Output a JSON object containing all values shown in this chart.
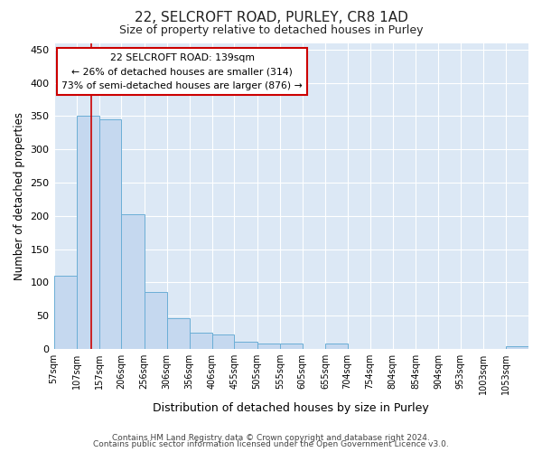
{
  "title": "22, SELCROFT ROAD, PURLEY, CR8 1AD",
  "subtitle": "Size of property relative to detached houses in Purley",
  "xlabel": "Distribution of detached houses by size in Purley",
  "ylabel": "Number of detached properties",
  "bar_values": [
    110,
    350,
    345,
    203,
    85,
    46,
    25,
    22,
    11,
    8,
    8,
    0,
    8,
    0,
    0,
    0,
    0,
    0,
    0,
    0,
    4
  ],
  "bar_edges": [
    57,
    107,
    157,
    206,
    256,
    306,
    356,
    406,
    455,
    505,
    555,
    605,
    655,
    704,
    754,
    804,
    854,
    904,
    953,
    1003,
    1053,
    1103
  ],
  "xtick_labels": [
    "57sqm",
    "107sqm",
    "157sqm",
    "206sqm",
    "256sqm",
    "306sqm",
    "356sqm",
    "406sqm",
    "455sqm",
    "505sqm",
    "555sqm",
    "605sqm",
    "655sqm",
    "704sqm",
    "754sqm",
    "804sqm",
    "854sqm",
    "904sqm",
    "953sqm",
    "1003sqm",
    "1053sqm"
  ],
  "bar_color": "#c5d8ef",
  "bar_edge_color": "#6baed6",
  "red_line_x": 139,
  "annotation_line1": "22 SELCROFT ROAD: 139sqm",
  "annotation_line2": "← 26% of detached houses are smaller (314)",
  "annotation_line3": "73% of semi-detached houses are larger (876) →",
  "annotation_box_color": "#cc0000",
  "ylim": [
    0,
    460
  ],
  "xlim": [
    57,
    1103
  ],
  "yticks": [
    0,
    50,
    100,
    150,
    200,
    250,
    300,
    350,
    400,
    450
  ],
  "footer_line1": "Contains HM Land Registry data © Crown copyright and database right 2024.",
  "footer_line2": "Contains public sector information licensed under the Open Government Licence v3.0.",
  "bg_color": "#dce8f5",
  "title_fontsize": 11,
  "subtitle_fontsize": 9
}
